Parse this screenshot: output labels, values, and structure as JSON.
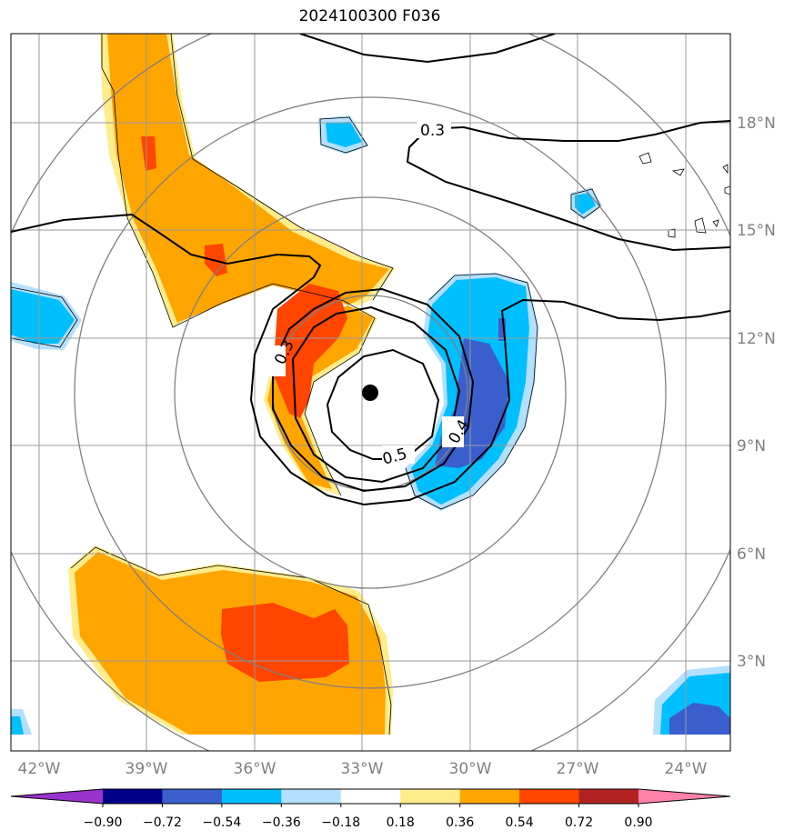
{
  "title": "2024100300 F036",
  "map": {
    "lon_ticks": [
      "42°W",
      "39°W",
      "36°W",
      "33°W",
      "30°W",
      "27°W",
      "24°W"
    ],
    "lat_ticks": [
      "18°N",
      "15°N",
      "12°N",
      "9°N",
      "6°N",
      "3°N"
    ],
    "contour_labels": [
      "0.3",
      "0.3",
      "0.4",
      "0.5"
    ],
    "storm_center": {
      "lon": -32.7,
      "lat": 10.4
    },
    "colors": {
      "grid": "#999999",
      "range_rings": "#808080",
      "contours": "#000000",
      "shade_orange": "#ffa500",
      "shade_red": "#ff4500",
      "shade_yellow": "#ffec8b",
      "shade_lightblue": "#b3e0ff",
      "shade_blue": "#00bfff",
      "shade_royal": "#3a5fcd"
    }
  },
  "colorbar": {
    "labels": [
      "−0.90",
      "−0.72",
      "−0.54",
      "−0.36",
      "−0.18",
      "0.18",
      "0.36",
      "0.54",
      "0.72",
      "0.90"
    ],
    "colors": [
      "#9932cc",
      "#00008b",
      "#3a5fcd",
      "#00bfff",
      "#b3e0ff",
      "#ffffff",
      "#ffec8b",
      "#ffa500",
      "#ff4500",
      "#b22222",
      "#ff82ab"
    ]
  }
}
